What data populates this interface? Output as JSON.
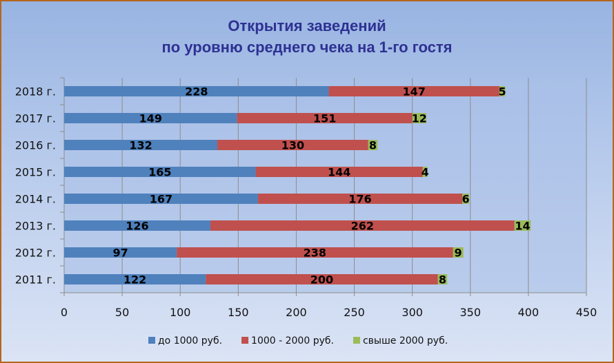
{
  "chart_data": {
    "type": "bar",
    "orientation": "horizontal",
    "stacked": true,
    "title": [
      "Открытия заведений",
      "по уровню среднего чека на 1-го гостя"
    ],
    "categories": [
      "2018 г.",
      "2017 г.",
      "2016 г.",
      "2015 г.",
      "2014 г.",
      "2013 г.",
      "2012 г.",
      "2011 г."
    ],
    "series": [
      {
        "name": "до 1000 руб.",
        "color": "#4f81bd",
        "values": [
          228,
          149,
          132,
          165,
          167,
          126,
          97,
          122
        ]
      },
      {
        "name": "1000 - 2000 руб.",
        "color": "#c0504d",
        "values": [
          147,
          151,
          130,
          144,
          176,
          262,
          238,
          200
        ]
      },
      {
        "name": "свыше 2000 руб.",
        "color": "#9bbb59",
        "values": [
          5,
          12,
          8,
          4,
          6,
          14,
          9,
          8
        ]
      }
    ],
    "xlim": [
      0,
      450
    ],
    "xticks": [
      "0",
      "50",
      "100",
      "150",
      "200",
      "250",
      "300",
      "350",
      "400",
      "450"
    ],
    "grid": true,
    "legend": "bottom"
  }
}
